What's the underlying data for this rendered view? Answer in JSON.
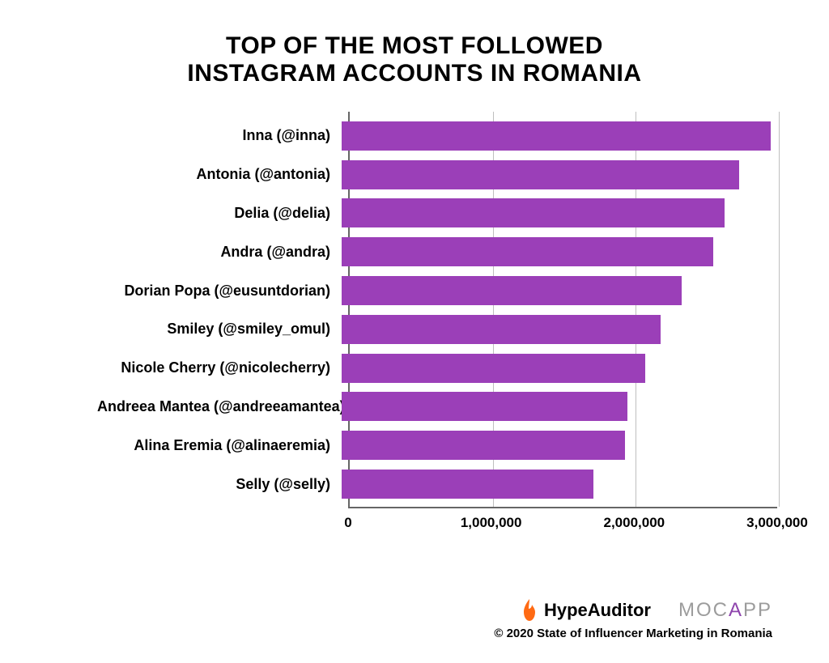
{
  "title": {
    "line1": "TOP OF THE MOST FOLLOWED",
    "line2": "INSTAGRAM ACCOUNTS IN ROMANIA",
    "fontsize": 30,
    "color": "#000000",
    "weight": 900
  },
  "chart": {
    "type": "bar-horizontal",
    "bar_color": "#9b3fb8",
    "axis_color": "#666666",
    "grid_color": "#bfbfbf",
    "background_color": "#ffffff",
    "label_fontsize": 18,
    "tick_fontsize": 17,
    "xlim_max": 3000000,
    "xticks": [
      {
        "value": 0,
        "label": "0"
      },
      {
        "value": 1000000,
        "label": "1,000,000"
      },
      {
        "value": 2000000,
        "label": "2,000,000"
      },
      {
        "value": 3000000,
        "label": "3,000,000"
      }
    ],
    "items": [
      {
        "label": "Inna (@inna)",
        "value": 3000000
      },
      {
        "label": "Antonia (@antonia)",
        "value": 2780000
      },
      {
        "label": "Delia (@delia)",
        "value": 2680000
      },
      {
        "label": "Andra (@andra)",
        "value": 2600000
      },
      {
        "label": "Dorian Popa (@eusuntdorian)",
        "value": 2380000
      },
      {
        "label": "Smiley (@smiley_omul)",
        "value": 2230000
      },
      {
        "label": "Nicole Cherry (@nicolecherry)",
        "value": 2120000
      },
      {
        "label": "Andreea Mantea (@andreeamantea)",
        "value": 2000000
      },
      {
        "label": "Alina Eremia (@alinaeremia)",
        "value": 1980000
      },
      {
        "label": "Selly (@selly)",
        "value": 1760000
      }
    ]
  },
  "footer": {
    "logo1": {
      "text": "HypeAuditor",
      "flame_color": "#ff6a13"
    },
    "logo2": {
      "part1": "MOC",
      "part2": "A",
      "part3": "PP",
      "base_color": "#9c9c9c",
      "accent_color": "#8e44ad"
    },
    "copyright": "© 2020 State of Influencer Marketing in Romania"
  }
}
